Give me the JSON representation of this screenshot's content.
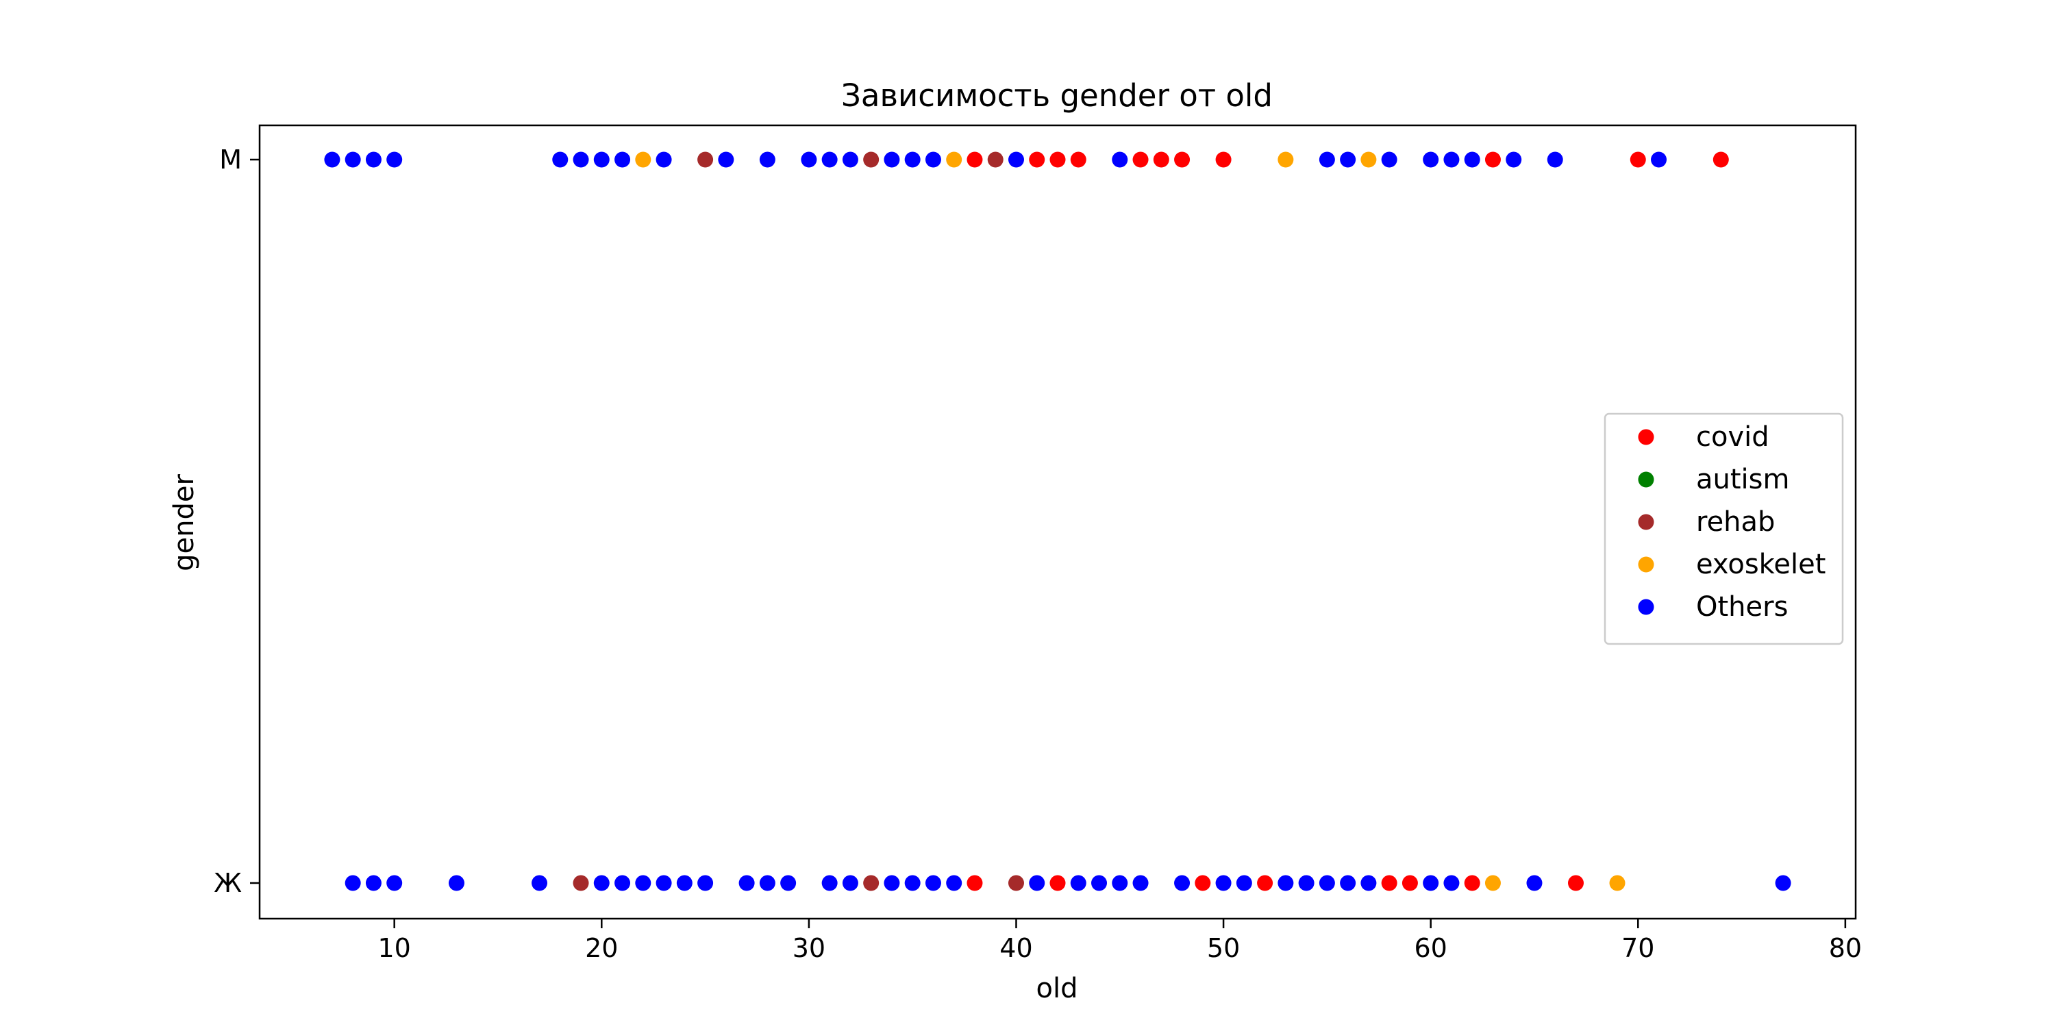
{
  "chart_data": {
    "type": "scatter",
    "title": "Зависимость gender от old",
    "xlabel": "old",
    "ylabel": "gender",
    "xlim": [
      3.5,
      80.5
    ],
    "x_ticks": [
      10,
      20,
      30,
      40,
      50,
      60,
      70,
      80
    ],
    "y_categories": [
      "Ж",
      "М"
    ],
    "grid": false,
    "legend_position": "center-right",
    "series": [
      {
        "name": "covid",
        "color": "#ff0000",
        "points": [
          {
            "x": 38,
            "y": "М"
          },
          {
            "x": 41,
            "y": "М"
          },
          {
            "x": 42,
            "y": "М"
          },
          {
            "x": 43,
            "y": "М"
          },
          {
            "x": 46,
            "y": "М"
          },
          {
            "x": 47,
            "y": "М"
          },
          {
            "x": 48,
            "y": "М"
          },
          {
            "x": 50,
            "y": "М"
          },
          {
            "x": 63,
            "y": "М"
          },
          {
            "x": 70,
            "y": "М"
          },
          {
            "x": 74,
            "y": "М"
          },
          {
            "x": 38,
            "y": "Ж"
          },
          {
            "x": 42,
            "y": "Ж"
          },
          {
            "x": 49,
            "y": "Ж"
          },
          {
            "x": 52,
            "y": "Ж"
          },
          {
            "x": 58,
            "y": "Ж"
          },
          {
            "x": 59,
            "y": "Ж"
          },
          {
            "x": 62,
            "y": "Ж"
          },
          {
            "x": 67,
            "y": "Ж"
          }
        ]
      },
      {
        "name": "autism",
        "color": "#008000",
        "points": []
      },
      {
        "name": "rehab",
        "color": "#a52a2a",
        "points": [
          {
            "x": 25,
            "y": "М"
          },
          {
            "x": 33,
            "y": "М"
          },
          {
            "x": 39,
            "y": "М"
          },
          {
            "x": 19,
            "y": "Ж"
          },
          {
            "x": 33,
            "y": "Ж"
          },
          {
            "x": 40,
            "y": "Ж"
          }
        ]
      },
      {
        "name": "exoskelet",
        "color": "#ffa500",
        "points": [
          {
            "x": 22,
            "y": "М"
          },
          {
            "x": 37,
            "y": "М"
          },
          {
            "x": 53,
            "y": "М"
          },
          {
            "x": 57,
            "y": "М"
          },
          {
            "x": 63,
            "y": "Ж"
          },
          {
            "x": 69,
            "y": "Ж"
          }
        ]
      },
      {
        "name": "Others",
        "color": "#0000ff",
        "points": [
          {
            "x": 7,
            "y": "М"
          },
          {
            "x": 8,
            "y": "М"
          },
          {
            "x": 9,
            "y": "М"
          },
          {
            "x": 10,
            "y": "М"
          },
          {
            "x": 18,
            "y": "М"
          },
          {
            "x": 19,
            "y": "М"
          },
          {
            "x": 20,
            "y": "М"
          },
          {
            "x": 21,
            "y": "М"
          },
          {
            "x": 23,
            "y": "М"
          },
          {
            "x": 26,
            "y": "М"
          },
          {
            "x": 28,
            "y": "М"
          },
          {
            "x": 30,
            "y": "М"
          },
          {
            "x": 31,
            "y": "М"
          },
          {
            "x": 32,
            "y": "М"
          },
          {
            "x": 34,
            "y": "М"
          },
          {
            "x": 35,
            "y": "М"
          },
          {
            "x": 36,
            "y": "М"
          },
          {
            "x": 40,
            "y": "М"
          },
          {
            "x": 45,
            "y": "М"
          },
          {
            "x": 55,
            "y": "М"
          },
          {
            "x": 56,
            "y": "М"
          },
          {
            "x": 58,
            "y": "М"
          },
          {
            "x": 60,
            "y": "М"
          },
          {
            "x": 61,
            "y": "М"
          },
          {
            "x": 62,
            "y": "М"
          },
          {
            "x": 64,
            "y": "М"
          },
          {
            "x": 66,
            "y": "М"
          },
          {
            "x": 71,
            "y": "М"
          },
          {
            "x": 8,
            "y": "Ж"
          },
          {
            "x": 9,
            "y": "Ж"
          },
          {
            "x": 10,
            "y": "Ж"
          },
          {
            "x": 13,
            "y": "Ж"
          },
          {
            "x": 17,
            "y": "Ж"
          },
          {
            "x": 20,
            "y": "Ж"
          },
          {
            "x": 21,
            "y": "Ж"
          },
          {
            "x": 22,
            "y": "Ж"
          },
          {
            "x": 23,
            "y": "Ж"
          },
          {
            "x": 24,
            "y": "Ж"
          },
          {
            "x": 25,
            "y": "Ж"
          },
          {
            "x": 27,
            "y": "Ж"
          },
          {
            "x": 28,
            "y": "Ж"
          },
          {
            "x": 29,
            "y": "Ж"
          },
          {
            "x": 31,
            "y": "Ж"
          },
          {
            "x": 32,
            "y": "Ж"
          },
          {
            "x": 34,
            "y": "Ж"
          },
          {
            "x": 35,
            "y": "Ж"
          },
          {
            "x": 36,
            "y": "Ж"
          },
          {
            "x": 37,
            "y": "Ж"
          },
          {
            "x": 41,
            "y": "Ж"
          },
          {
            "x": 43,
            "y": "Ж"
          },
          {
            "x": 44,
            "y": "Ж"
          },
          {
            "x": 45,
            "y": "Ж"
          },
          {
            "x": 46,
            "y": "Ж"
          },
          {
            "x": 48,
            "y": "Ж"
          },
          {
            "x": 50,
            "y": "Ж"
          },
          {
            "x": 51,
            "y": "Ж"
          },
          {
            "x": 53,
            "y": "Ж"
          },
          {
            "x": 54,
            "y": "Ж"
          },
          {
            "x": 55,
            "y": "Ж"
          },
          {
            "x": 56,
            "y": "Ж"
          },
          {
            "x": 57,
            "y": "Ж"
          },
          {
            "x": 60,
            "y": "Ж"
          },
          {
            "x": 61,
            "y": "Ж"
          },
          {
            "x": 65,
            "y": "Ж"
          },
          {
            "x": 77,
            "y": "Ж"
          }
        ]
      }
    ]
  }
}
